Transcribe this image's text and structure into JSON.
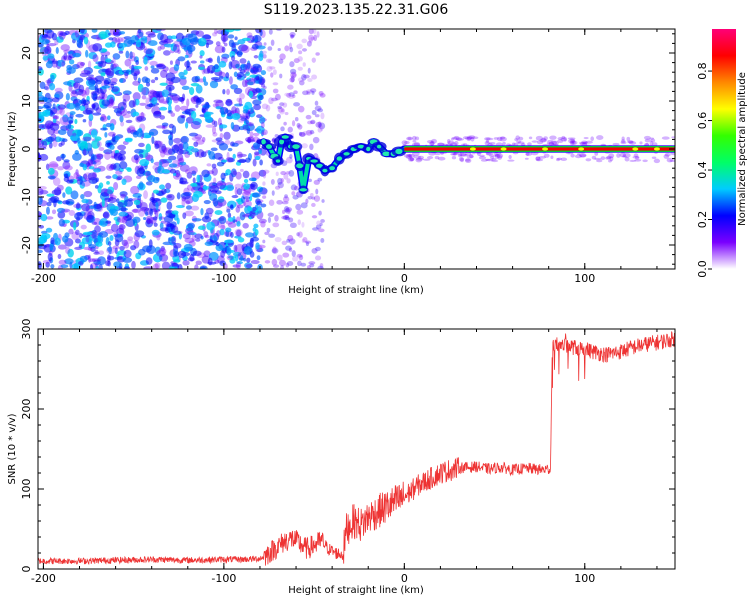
{
  "title": "S119.2023.135.22.31.G06",
  "chart_data": [
    {
      "type": "heatmap",
      "xlabel": "Height of straight line (km)",
      "ylabel": "Frequency (Hz)",
      "xlim": [
        -203,
        150
      ],
      "ylim": [
        -25,
        25
      ],
      "x_ticks": [
        -200,
        -100,
        0,
        100
      ],
      "y_ticks": [
        -20,
        -10,
        0,
        10,
        20
      ],
      "colorbar": {
        "label": "Normalized spectral amplitude",
        "range": [
          0,
          0.97
        ],
        "ticks": [
          "0.0",
          "0.2",
          "0.4",
          "0.6",
          "0.8"
        ],
        "colormap": [
          "#ffffff",
          "#7a00ff",
          "#0000ff",
          "#00ccff",
          "#00ff66",
          "#33ff00",
          "#ffff00",
          "#ff8800",
          "#ff0000",
          "#ff0077"
        ]
      },
      "regions": [
        {
          "x_range": [
            -203,
            -78
          ],
          "description_values": "noise",
          "amplitude": [
            0.05,
            0.35
          ]
        },
        {
          "x_range": [
            -78,
            -45
          ],
          "amplitude": [
            0.2,
            0.55
          ]
        },
        {
          "x_range": [
            -45,
            0
          ],
          "amplitude": [
            0.3,
            0.6
          ]
        },
        {
          "x_range": [
            0,
            150
          ],
          "frequency": 0,
          "amplitude": 0.9
        }
      ],
      "ridge": [
        {
          "x": -78,
          "y": 1.5
        },
        {
          "x": -75,
          "y": 0.5
        },
        {
          "x": -72,
          "y": -1.5
        },
        {
          "x": -70,
          "y": -2.5
        },
        {
          "x": -68,
          "y": 1.5
        },
        {
          "x": -66,
          "y": 2.5
        },
        {
          "x": -63,
          "y": 0.5
        },
        {
          "x": -60,
          "y": 0.5
        },
        {
          "x": -58,
          "y": -3.5
        },
        {
          "x": -56,
          "y": -8.5
        },
        {
          "x": -53,
          "y": -2.0
        },
        {
          "x": -50,
          "y": -2.5
        },
        {
          "x": -47,
          "y": -3.5
        },
        {
          "x": -44,
          "y": -4.5
        },
        {
          "x": -40,
          "y": -4.0
        },
        {
          "x": -36,
          "y": -2.0
        },
        {
          "x": -32,
          "y": -1.0
        },
        {
          "x": -28,
          "y": 0.0
        },
        {
          "x": -24,
          "y": 0.5
        },
        {
          "x": -20,
          "y": 0.0
        },
        {
          "x": -17,
          "y": 1.5
        },
        {
          "x": -14,
          "y": 0.5
        },
        {
          "x": -10,
          "y": -1.0
        },
        {
          "x": -6,
          "y": -1.0
        },
        {
          "x": -3,
          "y": -0.5
        },
        {
          "x": 0,
          "y": 0.0
        },
        {
          "x": 150,
          "y": 0.0
        }
      ]
    },
    {
      "type": "line",
      "xlabel": "Height of straight line (km)",
      "ylabel": "SNR (10 * v/v)",
      "xlim": [
        -203,
        150
      ],
      "ylim": [
        0,
        300
      ],
      "x_ticks": [
        -200,
        -100,
        0,
        100
      ],
      "y_ticks": [
        0,
        100,
        200,
        300
      ],
      "series": [
        {
          "color": "#ee3333",
          "x": [
            -203,
            -180,
            -160,
            -140,
            -120,
            -100,
            -90,
            -80,
            -78,
            -72,
            -66,
            -62,
            -58,
            -54,
            -50,
            -46,
            -42,
            -38,
            -34,
            -32,
            -28,
            -24,
            -20,
            -16,
            -12,
            -8,
            -4,
            0,
            4,
            8,
            12,
            16,
            20,
            24,
            28,
            32,
            36,
            40,
            44,
            48,
            52,
            56,
            60,
            64,
            68,
            72,
            76,
            80,
            81,
            82,
            84,
            88,
            92,
            96,
            100,
            104,
            108,
            112,
            116,
            120,
            124,
            128,
            132,
            136,
            140,
            144,
            150
          ],
          "y": [
            10,
            10,
            11,
            12,
            11,
            12,
            12,
            13,
            15,
            25,
            35,
            38,
            32,
            25,
            30,
            35,
            25,
            20,
            18,
            50,
            60,
            55,
            65,
            70,
            75,
            80,
            85,
            90,
            98,
            105,
            110,
            115,
            120,
            123,
            125,
            127,
            127,
            128,
            126,
            125,
            127,
            126,
            124,
            125,
            126,
            125,
            124,
            125,
            125,
            275,
            280,
            280,
            278,
            276,
            275,
            272,
            270,
            268,
            270,
            272,
            275,
            278,
            280,
            282,
            283,
            285,
            288
          ]
        }
      ]
    }
  ]
}
